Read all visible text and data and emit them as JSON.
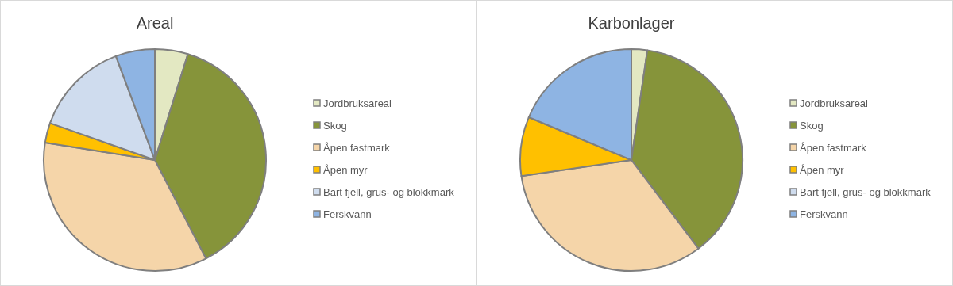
{
  "chart_data": [
    {
      "type": "pie",
      "title": "Areal",
      "categories": [
        "Jordbruksareal",
        "Skog",
        "Åpen fastmark",
        "Åpen myr",
        "Bart fjell, grus- og blokkmark",
        "Ferskvann"
      ],
      "values": [
        4.8,
        37.6,
        35.1,
        2.9,
        13.9,
        5.7
      ],
      "colors": [
        "#e3e8c2",
        "#86943a",
        "#f5d5a9",
        "#ffc000",
        "#cfdcee",
        "#8eb4e3"
      ],
      "legend": "right"
    },
    {
      "type": "pie",
      "title": "Karbonlager",
      "categories": [
        "Jordbruksareal",
        "Skog",
        "Åpen fastmark",
        "Åpen myr",
        "Bart fjell, grus- og blokkmark",
        "Ferskvann"
      ],
      "values": [
        2.3,
        37.4,
        33.0,
        8.6,
        0,
        18.7
      ],
      "colors": [
        "#e3e8c2",
        "#86943a",
        "#f5d5a9",
        "#ffc000",
        "#cfdcee",
        "#8eb4e3"
      ],
      "legend": "right"
    }
  ]
}
